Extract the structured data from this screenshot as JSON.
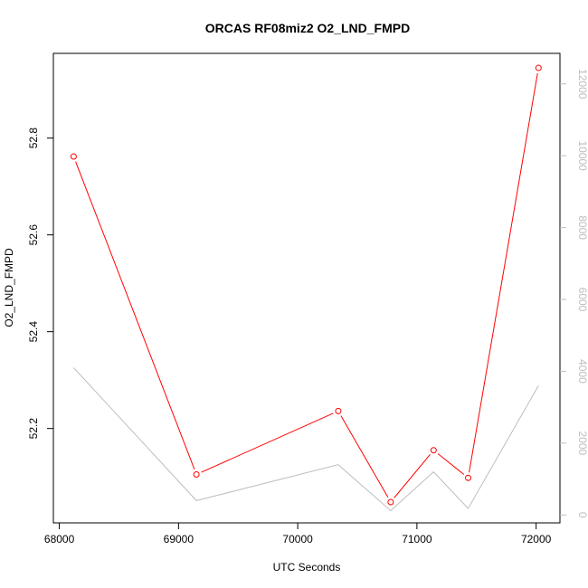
{
  "chart_data": {
    "type": "line",
    "title": "ORCAS RF08miz2 O2_LND_FMPD",
    "xlabel": "UTC Seconds",
    "ylabel": "O2_LND_FMPD",
    "xlim": [
      67950,
      72200
    ],
    "ylim": [
      52.005,
      52.975
    ],
    "y2lim": [
      -220,
      12850
    ],
    "x_ticks": [
      68000,
      69000,
      70000,
      71000,
      72000
    ],
    "y_ticks": [
      52.2,
      52.4,
      52.6,
      52.8
    ],
    "y2_ticks": [
      0,
      2000,
      4000,
      6000,
      8000,
      10000,
      12000
    ],
    "grid": false,
    "series": [
      {
        "axis": "left",
        "color": "#ff0000",
        "markers": "open-circle",
        "x": [
          68120,
          69150,
          70340,
          70780,
          71140,
          71430,
          72020
        ],
        "y": [
          52.762,
          52.105,
          52.236,
          52.048,
          52.155,
          52.098,
          52.945
        ]
      },
      {
        "axis": "right",
        "color": "#bebebe",
        "markers": "none",
        "x": [
          68120,
          69150,
          70340,
          70780,
          71140,
          71430,
          72020
        ],
        "y": [
          4100,
          400,
          1400,
          120,
          1200,
          180,
          3600
        ]
      }
    ]
  }
}
